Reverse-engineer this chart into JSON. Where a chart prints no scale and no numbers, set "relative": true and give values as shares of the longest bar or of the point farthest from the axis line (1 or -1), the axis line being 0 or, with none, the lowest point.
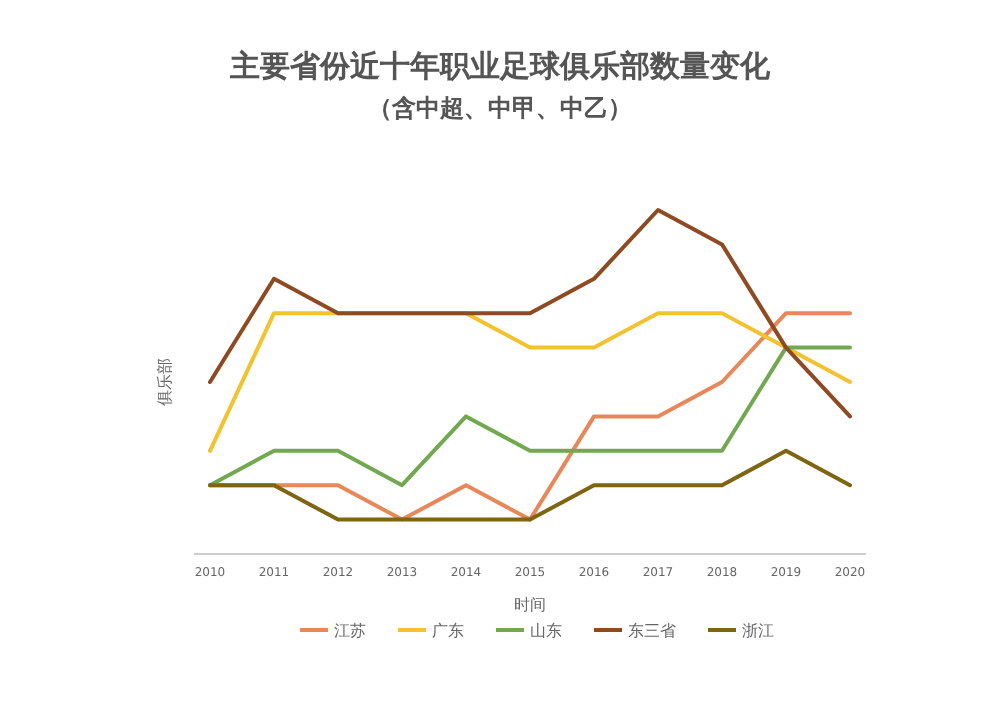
{
  "chart_data": {
    "type": "line",
    "title": "主要省份近十年职业足球俱乐部数量变化",
    "subtitle": "（含中超、中甲、中乙）",
    "xlabel": "时间",
    "ylabel": "俱乐部",
    "categories": [
      "2010",
      "2011",
      "2012",
      "2013",
      "2014",
      "2015",
      "2016",
      "2017",
      "2018",
      "2019",
      "2020"
    ],
    "relative": true,
    "legend": "bottom",
    "series": [
      {
        "name": "江苏",
        "color": "#e8875a",
        "values": [
          0.2,
          0.2,
          0.2,
          0.1,
          0.2,
          0.1,
          0.4,
          0.4,
          0.5,
          0.7,
          0.7
        ]
      },
      {
        "name": "广东",
        "color": "#f2c230",
        "values": [
          0.3,
          0.7,
          0.7,
          0.7,
          0.7,
          0.6,
          0.6,
          0.7,
          0.7,
          0.6,
          0.5
        ]
      },
      {
        "name": "山东",
        "color": "#72a850",
        "values": [
          0.2,
          0.3,
          0.3,
          0.2,
          0.4,
          0.3,
          0.3,
          0.3,
          0.3,
          0.6,
          0.6
        ]
      },
      {
        "name": "东三省",
        "color": "#8e4a22",
        "values": [
          0.5,
          0.8,
          0.7,
          0.7,
          0.7,
          0.7,
          0.8,
          1.0,
          0.9,
          0.6,
          0.4
        ]
      },
      {
        "name": "浙江",
        "color": "#7d6512",
        "values": [
          0.2,
          0.2,
          0.1,
          0.1,
          0.1,
          0.1,
          0.2,
          0.2,
          0.2,
          0.3,
          0.2
        ]
      }
    ]
  }
}
